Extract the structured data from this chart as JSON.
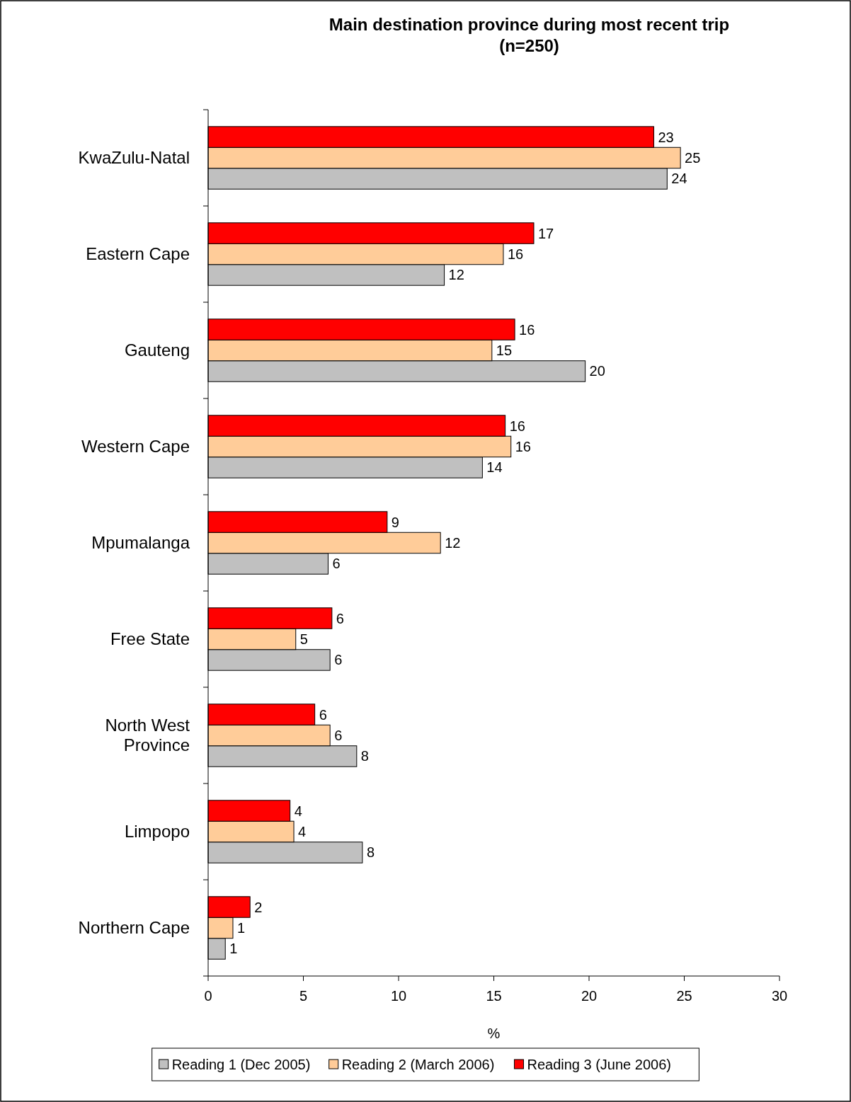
{
  "chart_data": {
    "type": "bar",
    "orientation": "horizontal",
    "title": "Main destination province during most recent trip\n(n=250)",
    "xlabel": "%",
    "categories": [
      "KwaZulu-Natal",
      "Eastern Cape",
      "Gauteng",
      "Western Cape",
      "Mpumalanga",
      "Free State",
      "North West Province",
      "Limpopo",
      "Northern Cape"
    ],
    "series": [
      {
        "name": "Reading 1 (Dec 2005)",
        "color": "#c0c0c0",
        "values": [
          24.1,
          12.4,
          19.8,
          14.4,
          6.3,
          6.4,
          7.8,
          8.1,
          0.9
        ],
        "value_labels": [
          "24",
          "12",
          "20",
          "14",
          "6",
          "6",
          "8",
          "8",
          "1"
        ]
      },
      {
        "name": "Reading 2 (March 2006)",
        "color": "#ffcc99",
        "values": [
          24.8,
          15.5,
          14.9,
          15.9,
          12.2,
          4.6,
          6.4,
          4.5,
          1.3
        ],
        "value_labels": [
          "25",
          "16",
          "15",
          "16",
          "12",
          "5",
          "6",
          "4",
          "1"
        ]
      },
      {
        "name": "Reading 3 (June 2006)",
        "color": "#ff0000",
        "values": [
          23.4,
          17.1,
          16.1,
          15.6,
          9.4,
          6.5,
          5.6,
          4.3,
          2.2
        ],
        "value_labels": [
          "23",
          "17",
          "16",
          "16",
          "9",
          "6",
          "6",
          "4",
          "2"
        ]
      }
    ],
    "xlim": [
      0,
      30
    ],
    "xticks": [
      0,
      5,
      10,
      15,
      20,
      25,
      30
    ],
    "grid": false,
    "legend": "bottom"
  }
}
